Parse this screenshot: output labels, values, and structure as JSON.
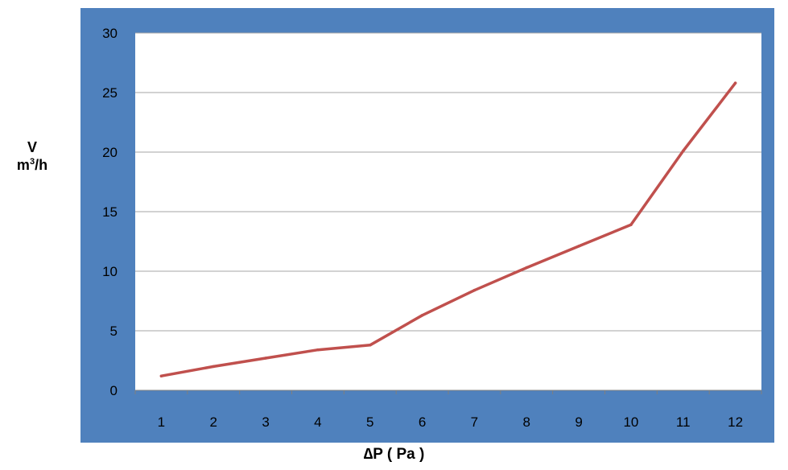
{
  "colors": {
    "frame": "#4f81bd",
    "plot_background": "#ffffff",
    "line": "#c0504d",
    "grid": "#a6a6a6"
  },
  "ylabel": {
    "symbol": "V",
    "unit_base": "m",
    "unit_exp": "3",
    "unit_tail": "/h"
  },
  "chart_data": {
    "type": "line",
    "title": "",
    "xlabel": "∆P ( Pa )",
    "ylabel": "V m3/h",
    "categories": [
      "1",
      "2",
      "3",
      "4",
      "5",
      "6",
      "7",
      "8",
      "9",
      "10",
      "11",
      "12"
    ],
    "series": [
      {
        "values": [
          1.2,
          2.0,
          2.7,
          3.4,
          3.8,
          6.3,
          8.4,
          10.3,
          12.1,
          13.9,
          20.1,
          25.8
        ]
      }
    ],
    "ylim": [
      0,
      30
    ],
    "yticks": [
      0,
      5,
      10,
      15,
      20,
      25,
      30
    ],
    "grid": "horizontal",
    "legend": "none"
  }
}
